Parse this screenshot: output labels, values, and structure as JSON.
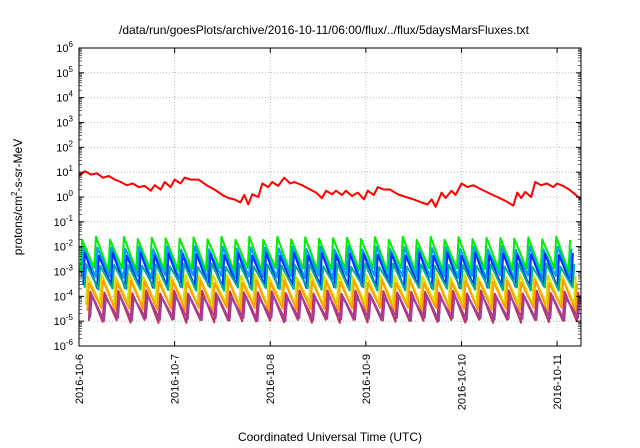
{
  "chart_data": {
    "type": "line",
    "title": "/data/run/goesPlots/archive/2016-10-11/06:00/flux/../flux/5daysMarsFluxes.txt",
    "xlabel": "Coordinated Universal Time (UTC)",
    "ylabel_base": "protons/cm",
    "ylabel_sup": "2",
    "ylabel_rest": "-s-sr-MeV",
    "yscale": "log",
    "ylim": [
      1e-06,
      1000000.0
    ],
    "xlim": [
      "2016-10-06 00:00",
      "2016-10-11 06:00"
    ],
    "grid": true,
    "y_ticks": [
      {
        "base": "10",
        "exp": "6"
      },
      {
        "base": "10",
        "exp": "5"
      },
      {
        "base": "10",
        "exp": "4"
      },
      {
        "base": "10",
        "exp": "3"
      },
      {
        "base": "10",
        "exp": "2"
      },
      {
        "base": "10",
        "exp": "1"
      },
      {
        "base": "10",
        "exp": "0"
      },
      {
        "base": "10",
        "exp": "-1"
      },
      {
        "base": "10",
        "exp": "-2"
      },
      {
        "base": "10",
        "exp": "-3"
      },
      {
        "base": "10",
        "exp": "-4"
      },
      {
        "base": "10",
        "exp": "-5"
      },
      {
        "base": "10",
        "exp": "-6"
      }
    ],
    "x_ticks": [
      "2016-10-6",
      "2016-10-7",
      "2016-10-8",
      "2016-10-9",
      "2016-10-10",
      "2016-10-11"
    ],
    "series": [
      {
        "color": "#ff0000",
        "values": [
          [
            "2016-10-06 00:00",
            7
          ],
          [
            "2016-10-06 01:30",
            11
          ],
          [
            "2016-10-06 03:00",
            8
          ],
          [
            "2016-10-06 04:30",
            9
          ],
          [
            "2016-10-06 06:00",
            6
          ],
          [
            "2016-10-06 07:30",
            7
          ],
          [
            "2016-10-06 09:00",
            5
          ],
          [
            "2016-10-06 10:30",
            4
          ],
          [
            "2016-10-06 12:00",
            3
          ],
          [
            "2016-10-06 13:30",
            3.5
          ],
          [
            "2016-10-06 15:00",
            2.5
          ],
          [
            "2016-10-06 16:30",
            2.8
          ],
          [
            "2016-10-06 18:00",
            1.8
          ],
          [
            "2016-10-06 19:00",
            3
          ],
          [
            "2016-10-06 20:30",
            2
          ],
          [
            "2016-10-06 21:30",
            4
          ],
          [
            "2016-10-06 23:00",
            2.5
          ],
          [
            "2016-10-07 00:00",
            5
          ],
          [
            "2016-10-07 01:30",
            3.5
          ],
          [
            "2016-10-07 02:30",
            6
          ],
          [
            "2016-10-07 04:00",
            5
          ],
          [
            "2016-10-07 06:00",
            5
          ],
          [
            "2016-10-07 08:00",
            3
          ],
          [
            "2016-10-07 10:00",
            2
          ],
          [
            "2016-10-07 12:00",
            1.2
          ],
          [
            "2016-10-07 13:30",
            0.9
          ],
          [
            "2016-10-07 15:00",
            0.8
          ],
          [
            "2016-10-07 16:30",
            0.6
          ],
          [
            "2016-10-07 17:30",
            1.2
          ],
          [
            "2016-10-07 18:30",
            0.5
          ],
          [
            "2016-10-07 19:30",
            1.3
          ],
          [
            "2016-10-07 21:00",
            1.0
          ],
          [
            "2016-10-07 22:00",
            3.5
          ],
          [
            "2016-10-07 23:30",
            2.5
          ],
          [
            "2016-10-08 00:30",
            4
          ],
          [
            "2016-10-08 02:00",
            2.8
          ],
          [
            "2016-10-08 03:30",
            6
          ],
          [
            "2016-10-08 05:00",
            3.5
          ],
          [
            "2016-10-08 06:00",
            4
          ],
          [
            "2016-10-08 08:00",
            3
          ],
          [
            "2016-10-08 10:00",
            2
          ],
          [
            "2016-10-08 11:30",
            1.5
          ],
          [
            "2016-10-08 13:00",
            0.9
          ],
          [
            "2016-10-08 14:00",
            1.8
          ],
          [
            "2016-10-08 15:30",
            1.3
          ],
          [
            "2016-10-08 16:30",
            1.8
          ],
          [
            "2016-10-08 18:00",
            1.2
          ],
          [
            "2016-10-08 19:00",
            1.8
          ],
          [
            "2016-10-08 20:30",
            1.1
          ],
          [
            "2016-10-08 22:00",
            1.5
          ],
          [
            "2016-10-08 23:30",
            0.8
          ],
          [
            "2016-10-09 00:30",
            1.8
          ],
          [
            "2016-10-09 02:00",
            1.2
          ],
          [
            "2016-10-09 03:00",
            2.5
          ],
          [
            "2016-10-09 04:30",
            2.0
          ],
          [
            "2016-10-09 06:00",
            2.0
          ],
          [
            "2016-10-09 08:00",
            1.3
          ],
          [
            "2016-10-09 10:00",
            1.0
          ],
          [
            "2016-10-09 12:00",
            0.8
          ],
          [
            "2016-10-09 14:00",
            0.6
          ],
          [
            "2016-10-09 15:30",
            0.5
          ],
          [
            "2016-10-09 16:30",
            0.8
          ],
          [
            "2016-10-09 17:30",
            0.4
          ],
          [
            "2016-10-09 19:00",
            1.5
          ],
          [
            "2016-10-09 20:00",
            0.9
          ],
          [
            "2016-10-09 21:30",
            1.8
          ],
          [
            "2016-10-09 22:30",
            1.2
          ],
          [
            "2016-10-10 00:00",
            3.5
          ],
          [
            "2016-10-10 01:30",
            2.5
          ],
          [
            "2016-10-10 03:00",
            3
          ],
          [
            "2016-10-10 05:00",
            2
          ],
          [
            "2016-10-10 07:00",
            1.4
          ],
          [
            "2016-10-10 09:00",
            1.0
          ],
          [
            "2016-10-10 11:00",
            0.7
          ],
          [
            "2016-10-10 13:00",
            0.45
          ],
          [
            "2016-10-10 14:00",
            1.5
          ],
          [
            "2016-10-10 15:00",
            0.9
          ],
          [
            "2016-10-10 16:00",
            1.6
          ],
          [
            "2016-10-10 17:30",
            1.0
          ],
          [
            "2016-10-10 18:30",
            4
          ],
          [
            "2016-10-10 20:00",
            3
          ],
          [
            "2016-10-10 21:30",
            3.5
          ],
          [
            "2016-10-10 23:00",
            2.5
          ],
          [
            "2016-10-11 00:00",
            3.5
          ],
          [
            "2016-10-11 01:30",
            2.8
          ],
          [
            "2016-10-11 03:00",
            2.0
          ],
          [
            "2016-10-11 04:30",
            1.3
          ],
          [
            "2016-10-11 06:00",
            0.8
          ]
        ]
      },
      {
        "color": "#00ee00",
        "base": 0.0012,
        "peak": 0.022,
        "period_h": 3.5
      },
      {
        "color": "#00a0ff",
        "base": 0.0006,
        "peak": 0.009,
        "period_h": 3.5
      },
      {
        "color": "#0030ff",
        "base": 0.00025,
        "peak": 0.005,
        "period_h": 3.5
      },
      {
        "color": "#00b090",
        "base": 0.0002,
        "peak": 0.0018,
        "period_h": 3.5
      },
      {
        "color": "#dddd00",
        "base": 5e-05,
        "peak": 0.0007,
        "period_h": 3.5
      },
      {
        "color": "#ffa000",
        "base": 3e-05,
        "peak": 0.0004,
        "period_h": 3.5
      },
      {
        "color": "#c03060",
        "base": 1e-05,
        "peak": 0.00015,
        "period_h": 3.5
      },
      {
        "color": "#a040a0",
        "base": 1.2e-05,
        "peak": 0.0001,
        "period_h": 3.5
      }
    ]
  }
}
